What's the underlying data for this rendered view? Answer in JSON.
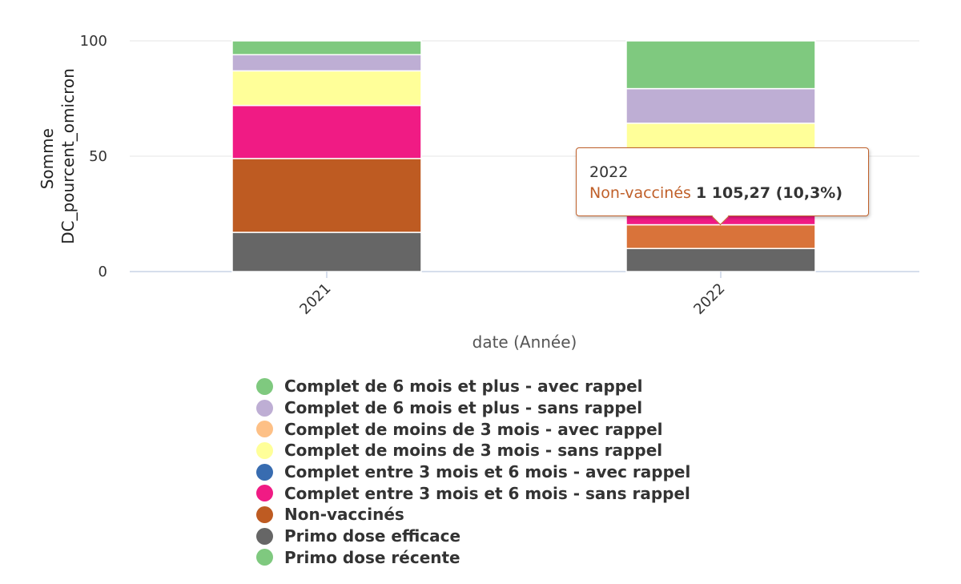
{
  "chart_data": {
    "type": "bar",
    "stacked": true,
    "categories": [
      "2021",
      "2022"
    ],
    "xlabel": "date (Année)",
    "ylabel": "Somme DC_pourcent_omicron",
    "ylabel_lines": [
      "Somme",
      "DC_pourcent_omicron"
    ],
    "ylim": [
      0,
      100
    ],
    "yticks": [
      "0",
      "50",
      "100"
    ],
    "grid": true,
    "legend_position": "bottom",
    "series": [
      {
        "name": "Primo dose efficace",
        "color": "#666666",
        "values": [
          17,
          10
        ]
      },
      {
        "name": "Non-vaccinés",
        "color": "#be5b22",
        "highlight_color": "#d9733a",
        "values": [
          32,
          10.3
        ]
      },
      {
        "name": "Complet entre 3 mois et 6 mois - sans rappel",
        "color": "#f01b84",
        "values": [
          23,
          15
        ]
      },
      {
        "name": "Complet de moins de 3 mois - sans rappel",
        "color": "#ffff99",
        "values": [
          15,
          29
        ]
      },
      {
        "name": "Complet de 6 mois et plus - sans rappel",
        "color": "#beaed4",
        "values": [
          7,
          15
        ]
      },
      {
        "name": "Complet de 6 mois et plus - avec rappel",
        "color": "#7fc97f",
        "values": [
          6,
          20.7
        ]
      }
    ]
  },
  "legend": [
    {
      "label": "Complet de 6 mois et plus - avec rappel",
      "color": "#7fc97f"
    },
    {
      "label": "Complet de 6 mois et plus - sans rappel",
      "color": "#beaed4"
    },
    {
      "label": "Complet de moins de 3 mois - avec rappel",
      "color": "#fdc086"
    },
    {
      "label": "Complet de moins de 3 mois - sans rappel",
      "color": "#ffff99"
    },
    {
      "label": "Complet entre 3 mois et 6 mois - avec rappel",
      "color": "#386cb0"
    },
    {
      "label": "Complet entre 3 mois et 6 mois - sans rappel",
      "color": "#f01b84"
    },
    {
      "label": "Non-vaccinés",
      "color": "#be5b22"
    },
    {
      "label": "Primo dose efficace",
      "color": "#666666"
    },
    {
      "label": "Primo dose récente",
      "color": "#7fc97f"
    }
  ],
  "tooltip": {
    "title": "2022",
    "series": "Non-vaccinés",
    "value": "1 105,27 (10,3%)"
  }
}
